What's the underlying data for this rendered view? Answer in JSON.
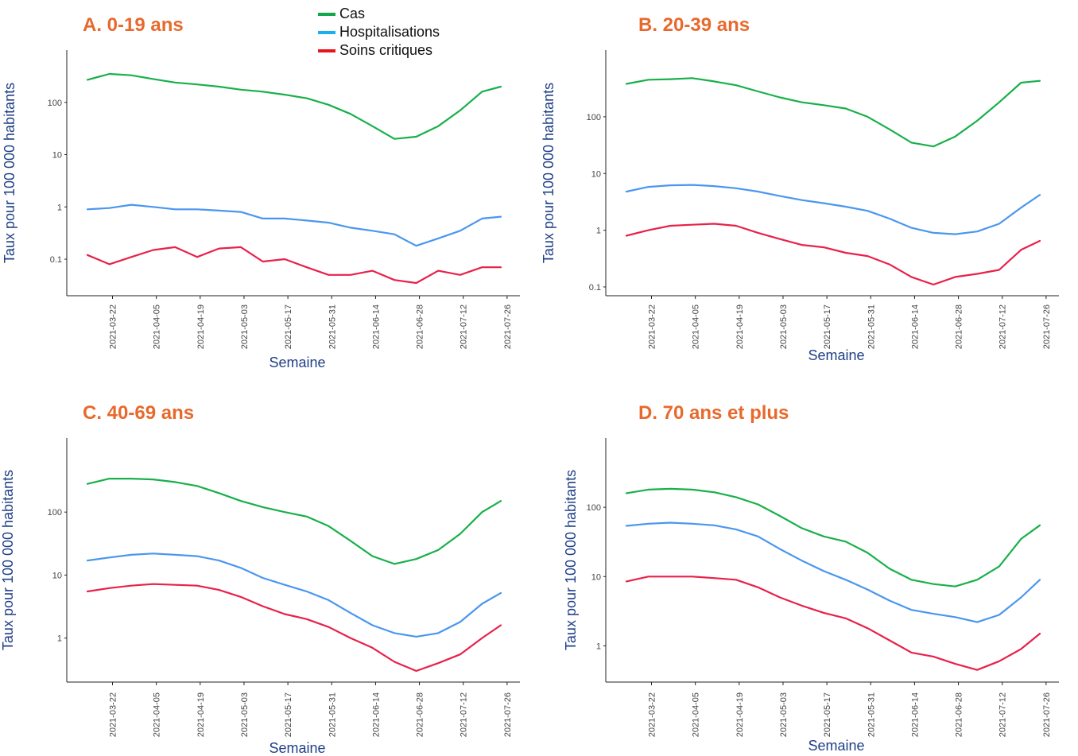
{
  "legend": {
    "items": [
      {
        "label": "Cas",
        "color": "#12a84a"
      },
      {
        "label": "Hospitalisations",
        "color": "#1ab0f0"
      },
      {
        "label": "Soins critiques",
        "color": "#e8141b"
      }
    ]
  },
  "chart_data": [
    {
      "type": "line",
      "title": "A. 0-19 ans",
      "xlabel": "Semaine",
      "ylabel": "Taux pour 100 000 habitants",
      "yscale": "log",
      "ylim": [
        0.02,
        1000
      ],
      "yticks": [
        "0.1",
        "1",
        "10",
        "100"
      ],
      "xticks": [
        "2021-03-22",
        "2021-04-05",
        "2021-04-19",
        "2021-05-03",
        "2021-05-17",
        "2021-05-31",
        "2021-06-14",
        "2021-06-28",
        "2021-07-12",
        "2021-07-26"
      ],
      "grid": false,
      "series": [
        {
          "name": "Cas",
          "color": "#18b04a",
          "x": [
            "2021-03-14",
            "2021-03-21",
            "2021-03-28",
            "2021-04-04",
            "2021-04-11",
            "2021-04-18",
            "2021-04-25",
            "2021-05-02",
            "2021-05-09",
            "2021-05-16",
            "2021-05-23",
            "2021-05-30",
            "2021-06-06",
            "2021-06-13",
            "2021-06-20",
            "2021-06-27",
            "2021-07-04",
            "2021-07-11",
            "2021-07-18",
            "2021-07-24"
          ],
          "values": [
            270,
            350,
            330,
            280,
            240,
            220,
            200,
            175,
            160,
            140,
            120,
            90,
            60,
            35,
            20,
            22,
            35,
            70,
            160,
            200
          ]
        },
        {
          "name": "Hospitalisations",
          "color": "#4a96f0",
          "x": [
            "2021-03-14",
            "2021-03-21",
            "2021-03-28",
            "2021-04-04",
            "2021-04-11",
            "2021-04-18",
            "2021-04-25",
            "2021-05-02",
            "2021-05-09",
            "2021-05-16",
            "2021-05-23",
            "2021-05-30",
            "2021-06-06",
            "2021-06-13",
            "2021-06-20",
            "2021-06-27",
            "2021-07-04",
            "2021-07-11",
            "2021-07-18",
            "2021-07-24"
          ],
          "values": [
            0.9,
            0.95,
            1.1,
            1.0,
            0.9,
            0.9,
            0.85,
            0.8,
            0.6,
            0.6,
            0.55,
            0.5,
            0.4,
            0.35,
            0.3,
            0.18,
            0.25,
            0.35,
            0.6,
            0.65
          ]
        },
        {
          "name": "Soins critiques",
          "color": "#e8214a",
          "x": [
            "2021-03-14",
            "2021-03-21",
            "2021-03-28",
            "2021-04-04",
            "2021-04-11",
            "2021-04-18",
            "2021-04-25",
            "2021-05-02",
            "2021-05-09",
            "2021-05-16",
            "2021-05-23",
            "2021-05-30",
            "2021-06-06",
            "2021-06-13",
            "2021-06-20",
            "2021-06-27",
            "2021-07-04",
            "2021-07-11",
            "2021-07-18",
            "2021-07-24"
          ],
          "values": [
            0.12,
            0.08,
            0.11,
            0.15,
            0.17,
            0.11,
            0.16,
            0.17,
            0.09,
            0.1,
            0.07,
            0.05,
            0.05,
            0.06,
            0.04,
            0.035,
            0.06,
            0.05,
            0.07,
            0.07
          ]
        }
      ]
    },
    {
      "type": "line",
      "title": "B. 20-39 ans",
      "xlabel": "Semaine",
      "ylabel": "Taux pour 100 000 habitants",
      "yscale": "log",
      "ylim": [
        0.07,
        1500
      ],
      "yticks": [
        "0.1",
        "1",
        "10",
        "100"
      ],
      "xticks": [
        "2021-03-22",
        "2021-04-05",
        "2021-04-19",
        "2021-05-03",
        "2021-05-17",
        "2021-05-31",
        "2021-06-14",
        "2021-06-28",
        "2021-07-12",
        "2021-07-26"
      ],
      "grid": false,
      "series": [
        {
          "name": "Cas",
          "color": "#18b04a",
          "x": [
            "2021-03-14",
            "2021-03-21",
            "2021-03-28",
            "2021-04-04",
            "2021-04-11",
            "2021-04-18",
            "2021-04-25",
            "2021-05-02",
            "2021-05-09",
            "2021-05-16",
            "2021-05-23",
            "2021-05-30",
            "2021-06-06",
            "2021-06-13",
            "2021-06-20",
            "2021-06-27",
            "2021-07-04",
            "2021-07-11",
            "2021-07-18",
            "2021-07-24"
          ],
          "values": [
            380,
            450,
            460,
            480,
            420,
            360,
            280,
            220,
            180,
            160,
            140,
            100,
            60,
            35,
            30,
            45,
            85,
            180,
            400,
            430
          ]
        },
        {
          "name": "Hospitalisations",
          "color": "#4a96f0",
          "x": [
            "2021-03-14",
            "2021-03-21",
            "2021-03-28",
            "2021-04-04",
            "2021-04-11",
            "2021-04-18",
            "2021-04-25",
            "2021-05-02",
            "2021-05-09",
            "2021-05-16",
            "2021-05-23",
            "2021-05-30",
            "2021-06-06",
            "2021-06-13",
            "2021-06-20",
            "2021-06-27",
            "2021-07-04",
            "2021-07-11",
            "2021-07-18",
            "2021-07-24"
          ],
          "values": [
            4.8,
            5.8,
            6.2,
            6.3,
            6.0,
            5.5,
            4.8,
            4.0,
            3.4,
            3.0,
            2.6,
            2.2,
            1.6,
            1.1,
            0.9,
            0.85,
            0.95,
            1.3,
            2.5,
            4.2
          ]
        },
        {
          "name": "Soins critiques",
          "color": "#e8214a",
          "x": [
            "2021-03-14",
            "2021-03-21",
            "2021-03-28",
            "2021-04-04",
            "2021-04-11",
            "2021-04-18",
            "2021-04-25",
            "2021-05-02",
            "2021-05-09",
            "2021-05-16",
            "2021-05-23",
            "2021-05-30",
            "2021-06-06",
            "2021-06-13",
            "2021-06-20",
            "2021-06-27",
            "2021-07-04",
            "2021-07-11",
            "2021-07-18",
            "2021-07-24"
          ],
          "values": [
            0.8,
            1.0,
            1.2,
            1.25,
            1.3,
            1.2,
            0.9,
            0.7,
            0.55,
            0.5,
            0.4,
            0.35,
            0.25,
            0.15,
            0.11,
            0.15,
            0.17,
            0.2,
            0.45,
            0.65
          ]
        }
      ]
    },
    {
      "type": "line",
      "title": "C. 40-69 ans",
      "xlabel": "Semaine",
      "ylabel": "Taux pour 100 000 habitants",
      "yscale": "log",
      "ylim": [
        0.2,
        1500
      ],
      "yticks": [
        "1",
        "10",
        "100"
      ],
      "xticks": [
        "2021-03-22",
        "2021-04-05",
        "2021-04-19",
        "2021-05-03",
        "2021-05-17",
        "2021-05-31",
        "2021-06-14",
        "2021-06-28",
        "2021-07-12",
        "2021-07-26"
      ],
      "grid": false,
      "series": [
        {
          "name": "Cas",
          "color": "#18b04a",
          "x": [
            "2021-03-14",
            "2021-03-21",
            "2021-03-28",
            "2021-04-04",
            "2021-04-11",
            "2021-04-18",
            "2021-04-25",
            "2021-05-02",
            "2021-05-09",
            "2021-05-16",
            "2021-05-23",
            "2021-05-30",
            "2021-06-06",
            "2021-06-13",
            "2021-06-20",
            "2021-06-27",
            "2021-07-04",
            "2021-07-11",
            "2021-07-18",
            "2021-07-24"
          ],
          "values": [
            280,
            340,
            340,
            330,
            300,
            260,
            200,
            150,
            120,
            100,
            85,
            60,
            35,
            20,
            15,
            18,
            25,
            45,
            100,
            150
          ]
        },
        {
          "name": "Hospitalisations",
          "color": "#4a96f0",
          "x": [
            "2021-03-14",
            "2021-03-21",
            "2021-03-28",
            "2021-04-04",
            "2021-04-11",
            "2021-04-18",
            "2021-04-25",
            "2021-05-02",
            "2021-05-09",
            "2021-05-16",
            "2021-05-23",
            "2021-05-30",
            "2021-06-06",
            "2021-06-13",
            "2021-06-20",
            "2021-06-27",
            "2021-07-04",
            "2021-07-11",
            "2021-07-18",
            "2021-07-24"
          ],
          "values": [
            17,
            19,
            21,
            22,
            21,
            20,
            17,
            13,
            9,
            7,
            5.5,
            4,
            2.5,
            1.6,
            1.2,
            1.05,
            1.2,
            1.8,
            3.5,
            5.2
          ]
        },
        {
          "name": "Soins critiques",
          "color": "#e8214a",
          "x": [
            "2021-03-14",
            "2021-03-21",
            "2021-03-28",
            "2021-04-04",
            "2021-04-11",
            "2021-04-18",
            "2021-04-25",
            "2021-05-02",
            "2021-05-09",
            "2021-05-16",
            "2021-05-23",
            "2021-05-30",
            "2021-06-06",
            "2021-06-13",
            "2021-06-20",
            "2021-06-27",
            "2021-07-04",
            "2021-07-11",
            "2021-07-18",
            "2021-07-24"
          ],
          "values": [
            5.5,
            6.2,
            6.8,
            7.2,
            7.0,
            6.8,
            5.8,
            4.5,
            3.2,
            2.4,
            2.0,
            1.5,
            1.0,
            0.7,
            0.42,
            0.3,
            0.4,
            0.55,
            1.0,
            1.6
          ]
        }
      ]
    },
    {
      "type": "line",
      "title": "D. 70 ans et plus",
      "xlabel": "Semaine",
      "ylabel": "Taux pour 100 000 habitants",
      "yscale": "log",
      "ylim": [
        0.3,
        1000
      ],
      "yticks": [
        "1",
        "10",
        "100"
      ],
      "xticks": [
        "2021-03-22",
        "2021-04-05",
        "2021-04-19",
        "2021-05-03",
        "2021-05-17",
        "2021-05-31",
        "2021-06-14",
        "2021-06-28",
        "2021-07-12",
        "2021-07-26"
      ],
      "grid": false,
      "series": [
        {
          "name": "Cas",
          "color": "#18b04a",
          "x": [
            "2021-03-14",
            "2021-03-21",
            "2021-03-28",
            "2021-04-04",
            "2021-04-11",
            "2021-04-18",
            "2021-04-25",
            "2021-05-02",
            "2021-05-09",
            "2021-05-16",
            "2021-05-23",
            "2021-05-30",
            "2021-06-06",
            "2021-06-13",
            "2021-06-20",
            "2021-06-27",
            "2021-07-04",
            "2021-07-11",
            "2021-07-18",
            "2021-07-24"
          ],
          "values": [
            160,
            180,
            185,
            180,
            165,
            140,
            110,
            75,
            50,
            38,
            32,
            22,
            13,
            9,
            7.8,
            7.2,
            9,
            14,
            35,
            55
          ]
        },
        {
          "name": "Hospitalisations",
          "color": "#4a96f0",
          "x": [
            "2021-03-14",
            "2021-03-21",
            "2021-03-28",
            "2021-04-04",
            "2021-04-11",
            "2021-04-18",
            "2021-04-25",
            "2021-05-02",
            "2021-05-09",
            "2021-05-16",
            "2021-05-23",
            "2021-05-30",
            "2021-06-06",
            "2021-06-13",
            "2021-06-20",
            "2021-06-27",
            "2021-07-04",
            "2021-07-11",
            "2021-07-18",
            "2021-07-24"
          ],
          "values": [
            54,
            58,
            60,
            58,
            55,
            48,
            38,
            25,
            17,
            12,
            9,
            6.5,
            4.5,
            3.3,
            2.9,
            2.6,
            2.2,
            2.8,
            5,
            9
          ]
        },
        {
          "name": "Soins critiques",
          "color": "#e8214a",
          "x": [
            "2021-03-14",
            "2021-03-21",
            "2021-03-28",
            "2021-04-04",
            "2021-04-11",
            "2021-04-18",
            "2021-04-25",
            "2021-05-02",
            "2021-05-09",
            "2021-05-16",
            "2021-05-23",
            "2021-05-30",
            "2021-06-06",
            "2021-06-13",
            "2021-06-20",
            "2021-06-27",
            "2021-07-04",
            "2021-07-11",
            "2021-07-18",
            "2021-07-24"
          ],
          "values": [
            8.5,
            10,
            10,
            10,
            9.5,
            9,
            7,
            5,
            3.8,
            3.0,
            2.5,
            1.8,
            1.2,
            0.8,
            0.7,
            0.55,
            0.45,
            0.6,
            0.9,
            1.5
          ]
        }
      ]
    }
  ]
}
